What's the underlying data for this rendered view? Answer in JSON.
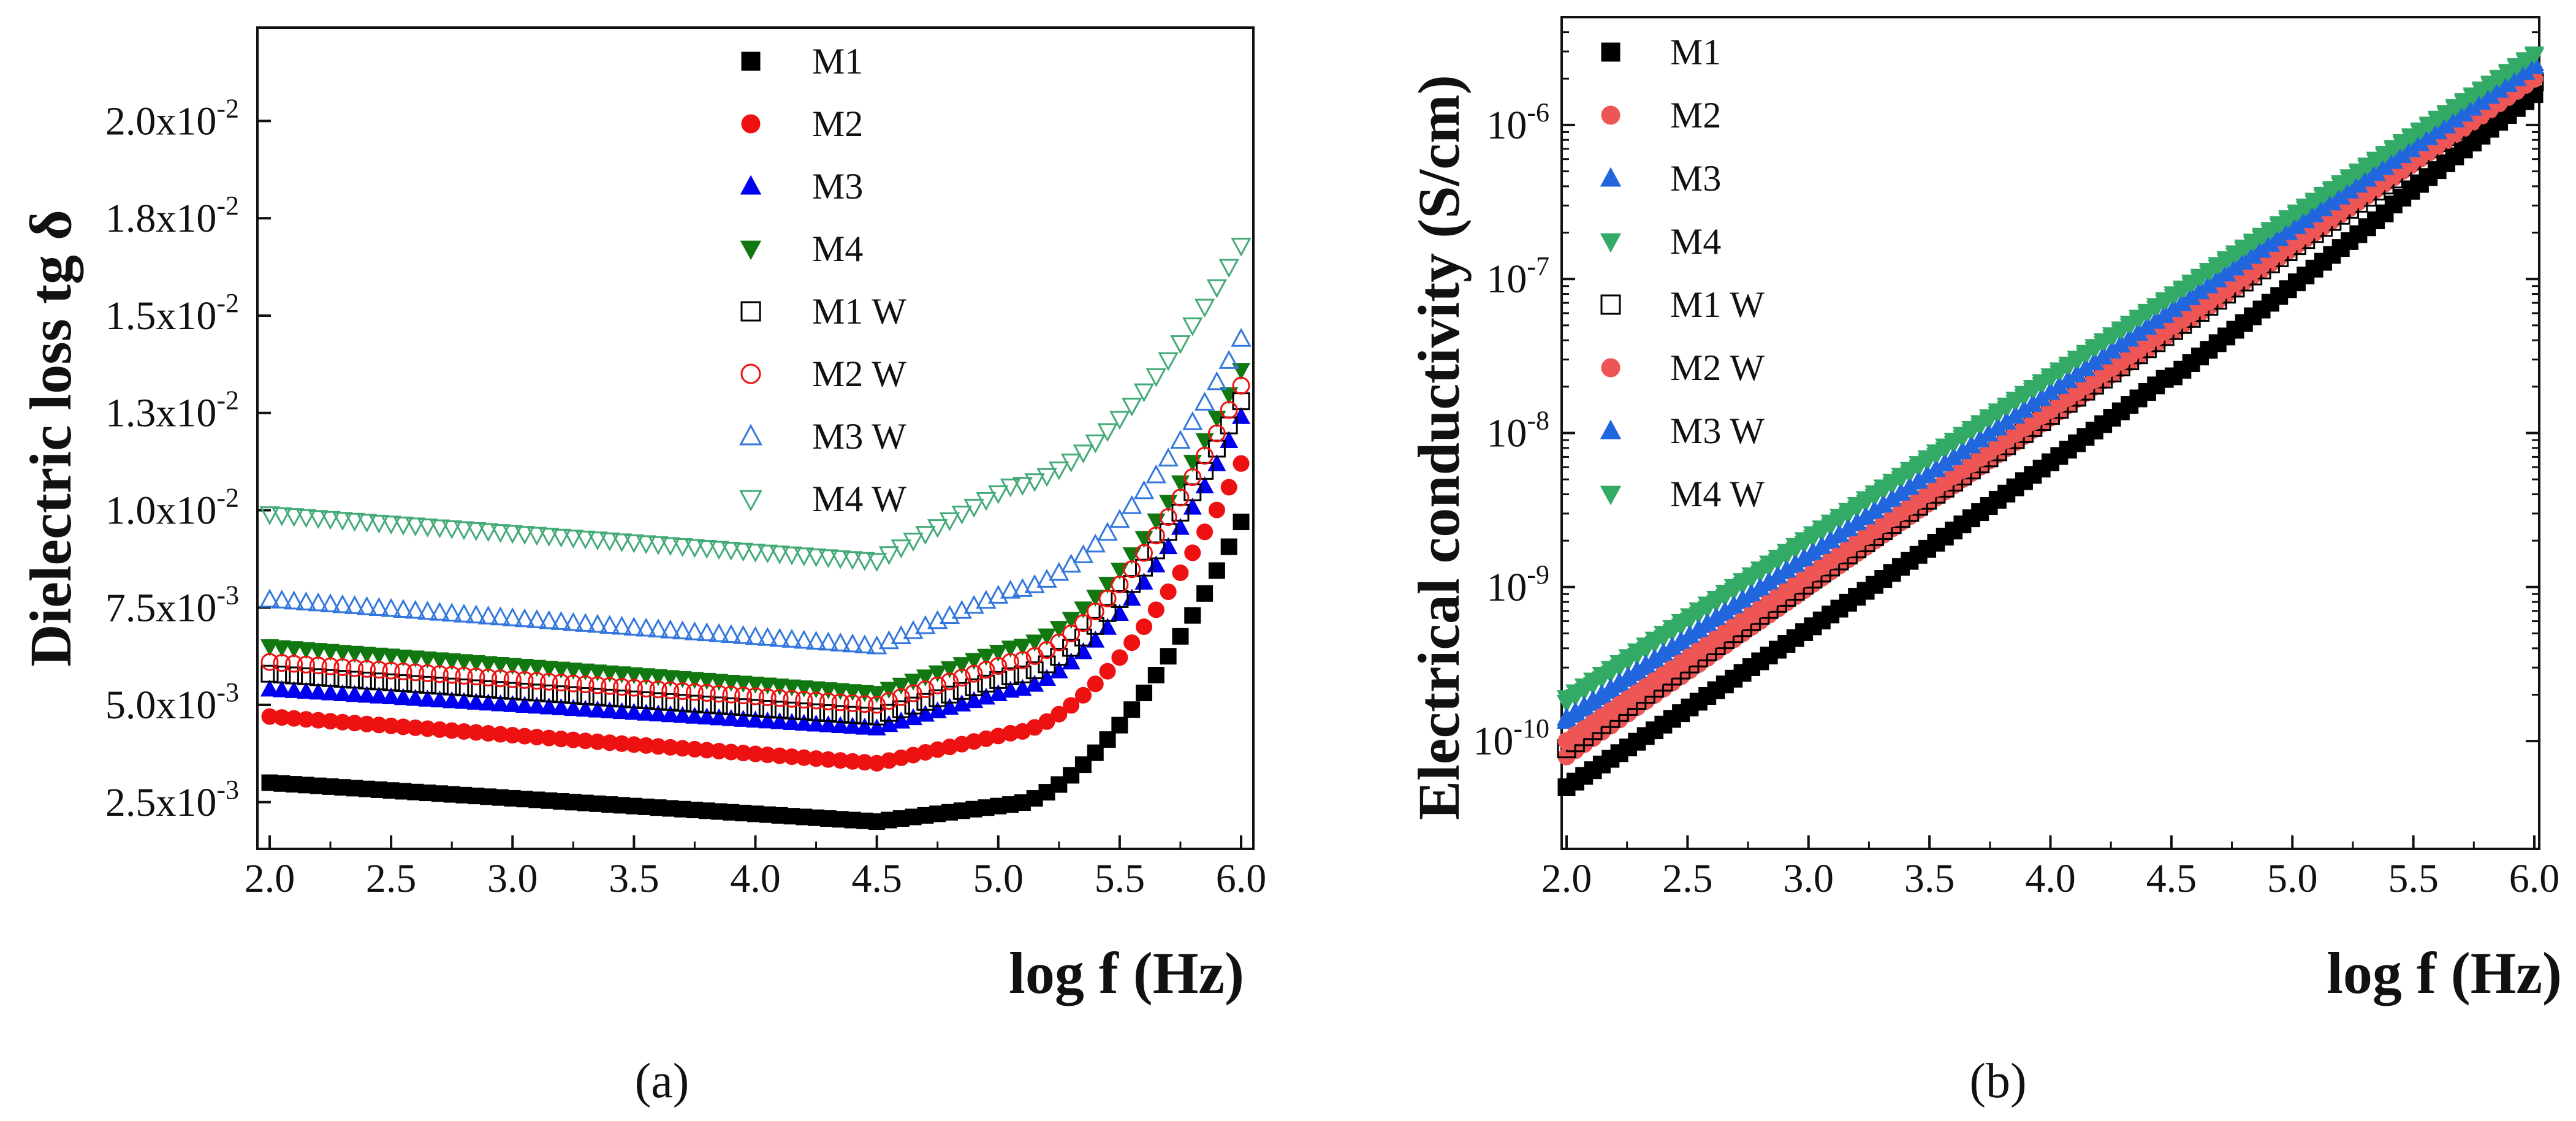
{
  "chart_data": [
    {
      "type": "scatter",
      "panel_label": "(a)",
      "xlabel": "log f (Hz)",
      "ylabel": "Dielectric loss tg δ",
      "xlim": [
        2.0,
        6.0
      ],
      "ylim": [
        0.0013,
        0.0224
      ],
      "x_ticks": [
        2.0,
        2.5,
        3.0,
        3.5,
        4.0,
        4.5,
        5.0,
        5.5,
        6.0
      ],
      "x_tick_labels": [
        "2.0",
        "2.5",
        "3.0",
        "3.5",
        "4.0",
        "4.5",
        "5.0",
        "5.5",
        "6.0"
      ],
      "y_ticks": [
        {
          "value": 0.0025,
          "mantissa": "2.5x10",
          "exp": "-3"
        },
        {
          "value": 0.005,
          "mantissa": "5.0x10",
          "exp": "-3"
        },
        {
          "value": 0.0075,
          "mantissa": "7.5x10",
          "exp": "-3"
        },
        {
          "value": 0.01,
          "mantissa": "1.0x10",
          "exp": "-2"
        },
        {
          "value": 0.0125,
          "mantissa": "1.3x10",
          "exp": "-2"
        },
        {
          "value": 0.015,
          "mantissa": "1.5x10",
          "exp": "-2"
        },
        {
          "value": 0.0175,
          "mantissa": "1.8x10",
          "exp": "-2"
        },
        {
          "value": 0.02,
          "mantissa": "2.0x10",
          "exp": "-2"
        }
      ],
      "legend_position": "top-center",
      "series": [
        {
          "name": "M1",
          "marker": "square",
          "filled": true,
          "color": "#000000",
          "start": 0.003,
          "min": 0.002,
          "end": 0.0097
        },
        {
          "name": "M2",
          "marker": "circle",
          "filled": true,
          "color": "#ee1111",
          "start": 0.0047,
          "min": 0.0035,
          "end": 0.0112
        },
        {
          "name": "M3",
          "marker": "triangle-up",
          "filled": true,
          "color": "#0000ee",
          "start": 0.0054,
          "min": 0.0044,
          "end": 0.0124
        },
        {
          "name": "M4",
          "marker": "triangle-down",
          "filled": true,
          "color": "#117711",
          "start": 0.0065,
          "min": 0.0053,
          "end": 0.0136
        },
        {
          "name": "M1 W",
          "marker": "square",
          "filled": false,
          "color": "#000000",
          "start": 0.0058,
          "min": 0.0047,
          "end": 0.0128
        },
        {
          "name": "M2 W",
          "marker": "circle",
          "filled": false,
          "color": "#ee1111",
          "start": 0.0061,
          "min": 0.005,
          "end": 0.0132
        },
        {
          "name": "M3 W",
          "marker": "triangle-up",
          "filled": false,
          "color": "#3377dd",
          "start": 0.0077,
          "min": 0.0065,
          "end": 0.0144
        },
        {
          "name": "M4 W",
          "marker": "triangle-down",
          "filled": false,
          "color": "#44aa77",
          "start": 0.0099,
          "min": 0.0087,
          "end": 0.0168
        }
      ]
    },
    {
      "type": "scatter",
      "panel_label": "(b)",
      "xlabel": "log f (Hz)",
      "ylabel": "Electrical conductivity  (S/cm)",
      "yscale": "log",
      "xlim": [
        2.0,
        6.0
      ],
      "ylim_log10": [
        -10.7,
        -5.3
      ],
      "x_ticks": [
        2.0,
        2.5,
        3.0,
        3.5,
        4.0,
        4.5,
        5.0,
        5.5,
        6.0
      ],
      "x_tick_labels": [
        "2.0",
        "2.5",
        "3.0",
        "3.5",
        "4.0",
        "4.5",
        "5.0",
        "5.5",
        "6.0"
      ],
      "y_ticks": [
        {
          "log10": -10,
          "mantissa": "10",
          "exp": "-10"
        },
        {
          "log10": -9,
          "mantissa": "10",
          "exp": "-9"
        },
        {
          "log10": -8,
          "mantissa": "10",
          "exp": "-8"
        },
        {
          "log10": -7,
          "mantissa": "10",
          "exp": "-7"
        },
        {
          "log10": -6,
          "mantissa": "10",
          "exp": "-6"
        }
      ],
      "legend_position": "top-left",
      "series": [
        {
          "name": "M1",
          "marker": "square",
          "color": "#000000",
          "log_start": -10.3,
          "log_end": -5.8
        },
        {
          "name": "M2",
          "marker": "circle",
          "color": "#ee5555",
          "log_start": -10.1,
          "log_end": -5.7
        },
        {
          "name": "M3",
          "marker": "triangle-up",
          "color": "#2266dd",
          "log_start": -9.87,
          "log_end": -5.6
        },
        {
          "name": "M4",
          "marker": "triangle-down",
          "color": "#33aa66",
          "log_start": -9.75,
          "log_end": -5.55
        },
        {
          "name": "M1 W",
          "marker": "square-open",
          "color": "#000000",
          "log_start": -10.05,
          "log_end": -5.72
        },
        {
          "name": "M2 W",
          "marker": "circle",
          "color": "#ee5555",
          "log_start": -10.0,
          "log_end": -5.7
        },
        {
          "name": "M3 W",
          "marker": "triangle-up",
          "color": "#2266dd",
          "log_start": -9.85,
          "log_end": -5.62
        },
        {
          "name": "M4 W",
          "marker": "triangle-down",
          "color": "#33aa66",
          "log_start": -9.72,
          "log_end": -5.54
        }
      ]
    }
  ]
}
